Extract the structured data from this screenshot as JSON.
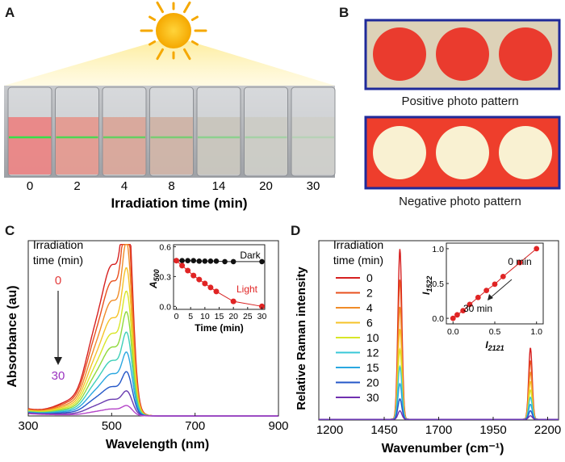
{
  "panels": {
    "a": {
      "label": "A",
      "times": [
        "0",
        "2",
        "4",
        "8",
        "14",
        "20",
        "30"
      ],
      "xlabel": "Irradiation time (min)"
    },
    "b": {
      "label": "B",
      "caption_positive": "Positive photo pattern",
      "caption_negative": "Negative photo pattern"
    },
    "c": {
      "label": "C"
    },
    "d": {
      "label": "D"
    }
  },
  "colors": {
    "series": [
      "#d62020",
      "#e8501e",
      "#f08c28",
      "#f5c328",
      "#d8e628",
      "#8fd93c",
      "#3ecfb8",
      "#2aa7e0",
      "#2457c8",
      "#6a3cb0",
      "#b444c8"
    ],
    "d_series": [
      "#d62020",
      "#e8501e",
      "#f08c28",
      "#f5c328",
      "#d8e628",
      "#38c8d8",
      "#2aa7e0",
      "#2457c8",
      "#7030b0",
      "#b444c8"
    ],
    "red": "#e23a3a",
    "frame": "#1f2a9a"
  },
  "chart_data": [
    {
      "id": "c-main",
      "type": "line",
      "xlabel": "Wavelength (nm)",
      "ylabel": "Absorbance (au)",
      "xlim": [
        300,
        900
      ],
      "xticks": [
        "300",
        "500",
        "700",
        "900"
      ],
      "legend_title": [
        "Irradiation",
        "time (min)"
      ],
      "legend_start": "0",
      "legend_end": "30",
      "series_scales": [
        1.0,
        0.9,
        0.78,
        0.67,
        0.57,
        0.48,
        0.39,
        0.3,
        0.21,
        0.12,
        0.05
      ]
    },
    {
      "id": "c-inset",
      "type": "scatter",
      "xlabel": "Time (min)",
      "ylabel": "A500",
      "ylabel_main": "A",
      "ylabel_sub": "500",
      "xlim": [
        -1,
        31
      ],
      "ylim": [
        -0.03,
        0.62
      ],
      "xticks": [
        "0",
        "5",
        "10",
        "15",
        "20",
        "25",
        "30"
      ],
      "yticks": [
        "0.0",
        "0.3",
        "0.6"
      ],
      "series": [
        {
          "name": "Dark",
          "x": [
            0,
            2,
            4,
            6,
            8,
            10,
            12,
            14,
            17,
            20,
            30
          ],
          "y": [
            0.46,
            0.46,
            0.46,
            0.46,
            0.455,
            0.455,
            0.455,
            0.455,
            0.45,
            0.45,
            0.45
          ]
        },
        {
          "name": "Light",
          "x": [
            0,
            2,
            4,
            6,
            8,
            10,
            12,
            14,
            20,
            30
          ],
          "y": [
            0.46,
            0.41,
            0.36,
            0.31,
            0.27,
            0.23,
            0.19,
            0.15,
            0.05,
            0.0
          ]
        }
      ]
    },
    {
      "id": "d-main",
      "type": "line",
      "xlabel": "Wavenumber (cm⁻¹)",
      "ylabel": "Relative Raman intensity",
      "xlim": [
        1150,
        2250
      ],
      "xticks": [
        "1200",
        "1450",
        "1700",
        "1950",
        "2200"
      ],
      "legend_title": [
        "Irradiation",
        "time (min)"
      ],
      "legend_labels": [
        "0",
        "2",
        "4",
        "6",
        "10",
        "12",
        "15",
        "20",
        "30"
      ],
      "series_scales": [
        1.0,
        0.82,
        0.66,
        0.53,
        0.41,
        0.31,
        0.21,
        0.12,
        0.05
      ]
    },
    {
      "id": "d-inset",
      "type": "scatter",
      "xlabel": "I2121",
      "xlabel_main": "I",
      "xlabel_sub": "2121",
      "ylabel": "I1522",
      "ylabel_main": "I",
      "ylabel_sub": "1522",
      "xlim": [
        -0.08,
        1.08
      ],
      "ylim": [
        -0.08,
        1.08
      ],
      "xticks": [
        "0.0",
        "0.5",
        "1.0"
      ],
      "yticks": [
        "0.0",
        "0.5",
        "1.0"
      ],
      "x": [
        0.0,
        0.05,
        0.12,
        0.2,
        0.3,
        0.4,
        0.5,
        0.6,
        0.8,
        1.0
      ],
      "y": [
        0.0,
        0.05,
        0.11,
        0.2,
        0.3,
        0.4,
        0.49,
        0.6,
        0.8,
        1.0
      ],
      "annotation_start": "0 min",
      "annotation_end": "30 min"
    }
  ]
}
